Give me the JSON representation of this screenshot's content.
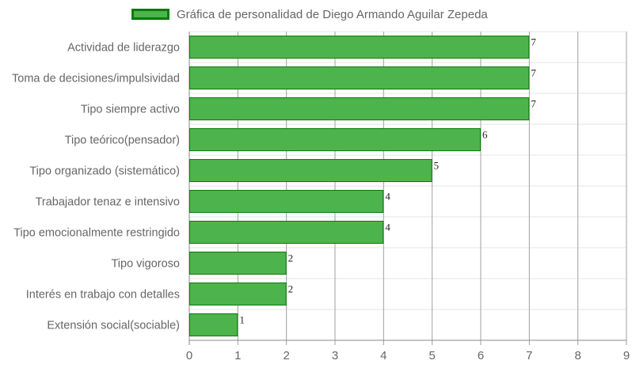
{
  "chart_data": {
    "type": "bar",
    "orientation": "horizontal",
    "legend": {
      "label": "Gráfica de personalidad de Diego Armando Aguilar Zepeda",
      "position": "top-center"
    },
    "categories": [
      "Actividad de liderazgo",
      "Toma de decisiones/impulsividad",
      "Tipo siempre activo",
      "Tipo teórico(pensador)",
      "Tipo organizado (sistemático)",
      "Trabajador tenaz e intensivo",
      "Tipo emocionalmente restringido",
      "Tipo vigoroso",
      "Interés en trabajo con detalles",
      "Extensión social(sociable)"
    ],
    "series": [
      {
        "name": "Gráfica de personalidad de Diego Armando Aguilar Zepeda",
        "values": [
          7,
          7,
          7,
          6,
          5,
          4,
          4,
          2,
          2,
          1
        ]
      }
    ],
    "xlim": [
      0,
      9
    ],
    "xticks": [
      "0",
      "1",
      "2",
      "3",
      "4",
      "5",
      "6",
      "7",
      "8",
      "9"
    ],
    "grid": true,
    "data_labels": true,
    "colors": {
      "bar_fill": "#4db34d",
      "bar_border": "#0b7a0b",
      "grid": "#e6e6e6",
      "grid_major": "#a0a0a0"
    }
  }
}
